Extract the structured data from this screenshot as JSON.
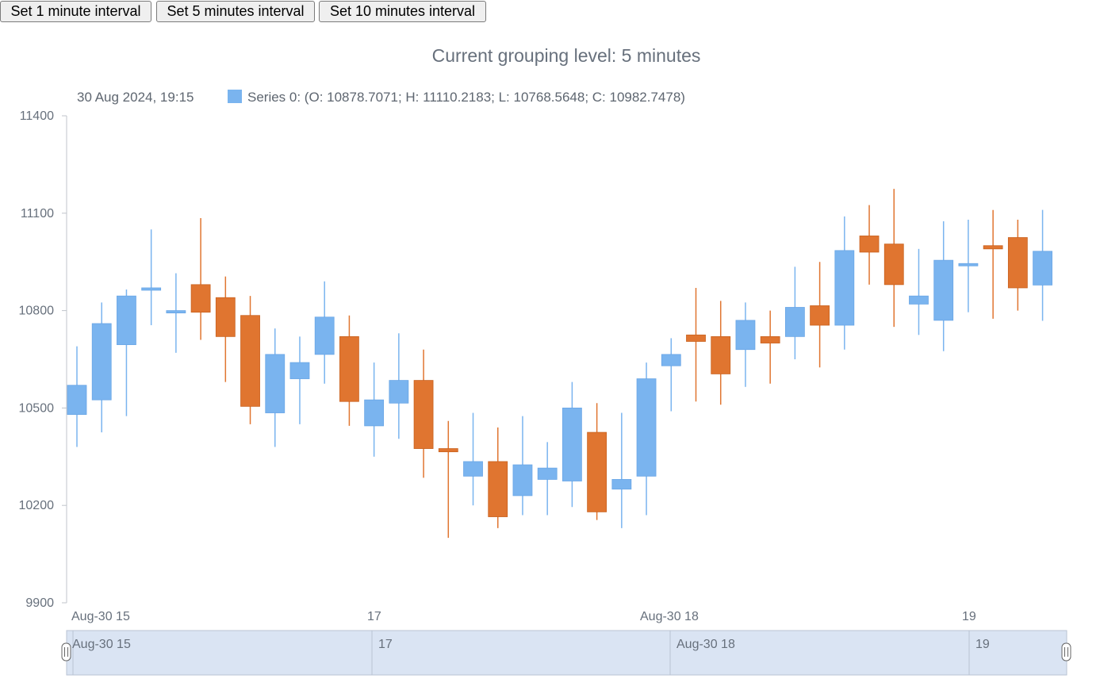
{
  "buttons": {
    "interval_1": "Set 1 minute interval",
    "interval_5": "Set 5 minutes interval",
    "interval_10": "Set 10 minutes interval"
  },
  "colors": {
    "rising": "#7ab4ef",
    "falling": "#e07530",
    "axis": "#c0c4cb",
    "navigator_fill": "#dae4f3",
    "navigator_border": "#b9c3d3",
    "text": "#67707c"
  },
  "chart_data": {
    "type": "candlestick",
    "title": "Current grouping level: 5 minutes",
    "legend": {
      "date": "30 Aug 2024, 19:15",
      "text": "Series 0: (O: 10878.7071; H: 11110.2183; L: 10768.5648; C: 10982.7478)"
    },
    "ylim": [
      9900,
      11400
    ],
    "y_ticks": [
      9900,
      10200,
      10500,
      10800,
      11100,
      11400
    ],
    "x_ticks": [
      "Aug-30 15",
      "17",
      "Aug-30 18",
      "19"
    ],
    "navigator_ticks": [
      "Aug-30 15",
      "17",
      "Aug-30 18",
      "19"
    ],
    "series": [
      {
        "name": "Series 0",
        "candles": [
          {
            "o": 10480,
            "h": 10690,
            "l": 10380,
            "c": 10570
          },
          {
            "o": 10525,
            "h": 10825,
            "l": 10425,
            "c": 10760
          },
          {
            "o": 10695,
            "h": 10865,
            "l": 10475,
            "c": 10845
          },
          {
            "o": 10865,
            "h": 11050,
            "l": 10755,
            "c": 10870
          },
          {
            "o": 10800,
            "h": 10915,
            "l": 10670,
            "c": 10800
          },
          {
            "o": 10880,
            "h": 11085,
            "l": 10710,
            "c": 10795
          },
          {
            "o": 10840,
            "h": 10905,
            "l": 10580,
            "c": 10720
          },
          {
            "o": 10785,
            "h": 10845,
            "l": 10450,
            "c": 10505
          },
          {
            "o": 10485,
            "h": 10745,
            "l": 10380,
            "c": 10665
          },
          {
            "o": 10590,
            "h": 10720,
            "l": 10450,
            "c": 10640
          },
          {
            "o": 10665,
            "h": 10890,
            "l": 10575,
            "c": 10780
          },
          {
            "o": 10720,
            "h": 10785,
            "l": 10445,
            "c": 10520
          },
          {
            "o": 10445,
            "h": 10640,
            "l": 10350,
            "c": 10525
          },
          {
            "o": 10515,
            "h": 10730,
            "l": 10405,
            "c": 10585
          },
          {
            "o": 10585,
            "h": 10680,
            "l": 10285,
            "c": 10375
          },
          {
            "o": 10375,
            "h": 10460,
            "l": 10100,
            "c": 10365
          },
          {
            "o": 10290,
            "h": 10485,
            "l": 10200,
            "c": 10335
          },
          {
            "o": 10335,
            "h": 10440,
            "l": 10130,
            "c": 10165
          },
          {
            "o": 10230,
            "h": 10475,
            "l": 10170,
            "c": 10325
          },
          {
            "o": 10280,
            "h": 10395,
            "l": 10170,
            "c": 10315
          },
          {
            "o": 10275,
            "h": 10580,
            "l": 10195,
            "c": 10500
          },
          {
            "o": 10425,
            "h": 10515,
            "l": 10155,
            "c": 10180
          },
          {
            "o": 10250,
            "h": 10485,
            "l": 10130,
            "c": 10280
          },
          {
            "o": 10290,
            "h": 10640,
            "l": 10170,
            "c": 10590
          },
          {
            "o": 10630,
            "h": 10715,
            "l": 10490,
            "c": 10665
          },
          {
            "o": 10725,
            "h": 10870,
            "l": 10520,
            "c": 10705
          },
          {
            "o": 10720,
            "h": 10830,
            "l": 10510,
            "c": 10605
          },
          {
            "o": 10680,
            "h": 10825,
            "l": 10565,
            "c": 10770
          },
          {
            "o": 10720,
            "h": 10800,
            "l": 10575,
            "c": 10700
          },
          {
            "o": 10720,
            "h": 10935,
            "l": 10650,
            "c": 10810
          },
          {
            "o": 10815,
            "h": 10950,
            "l": 10625,
            "c": 10755
          },
          {
            "o": 10755,
            "h": 11090,
            "l": 10680,
            "c": 10985
          },
          {
            "o": 11030,
            "h": 11125,
            "l": 10880,
            "c": 10980
          },
          {
            "o": 11005,
            "h": 11175,
            "l": 10750,
            "c": 10880
          },
          {
            "o": 10820,
            "h": 10990,
            "l": 10725,
            "c": 10845
          },
          {
            "o": 10770,
            "h": 11075,
            "l": 10675,
            "c": 10955
          },
          {
            "o": 10940,
            "h": 11080,
            "l": 10795,
            "c": 10945
          },
          {
            "o": 11000,
            "h": 11110,
            "l": 10775,
            "c": 10990
          },
          {
            "o": 11025,
            "h": 11080,
            "l": 10800,
            "c": 10870
          },
          {
            "o": 10878.7071,
            "h": 11110.2183,
            "l": 10768.5648,
            "c": 10982.7478
          }
        ]
      }
    ]
  }
}
